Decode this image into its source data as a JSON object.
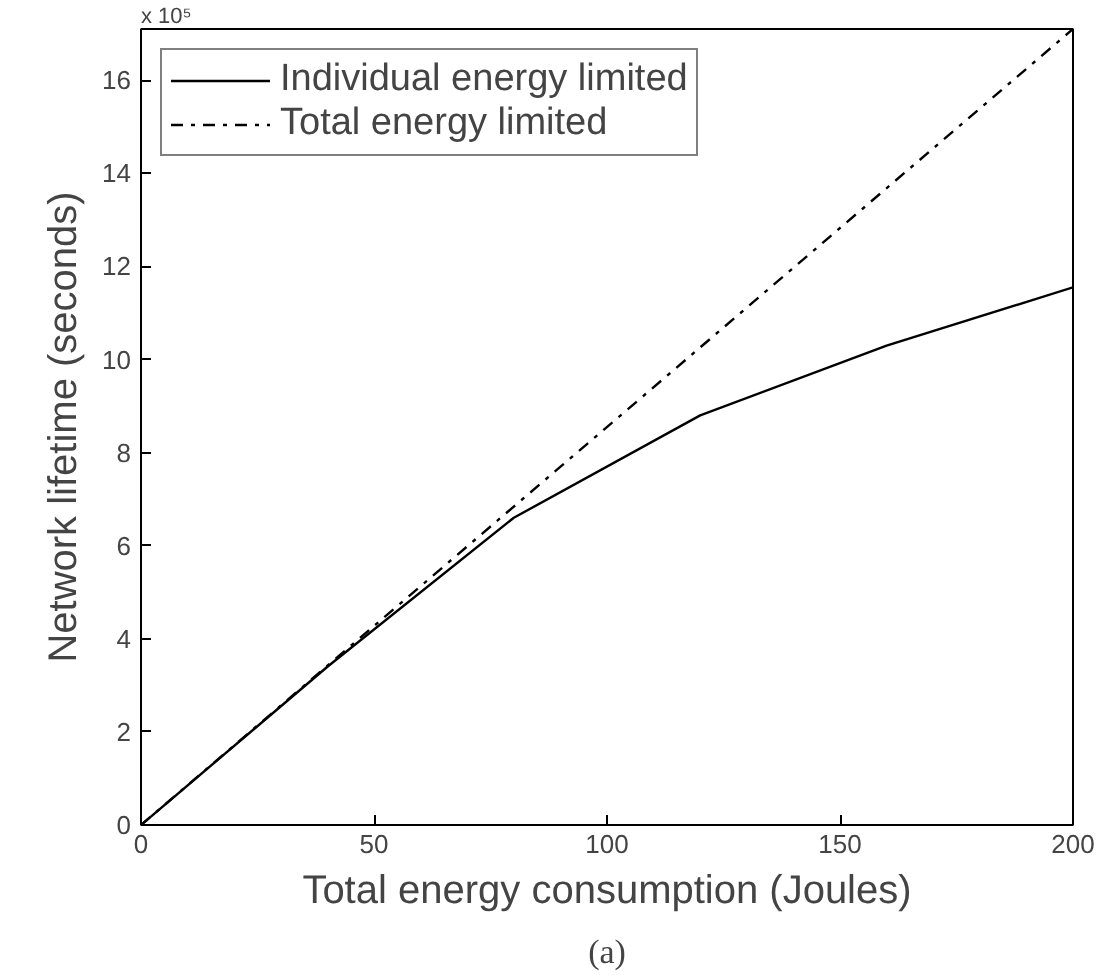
{
  "chart_data": {
    "type": "line",
    "xlabel": "Total energy consumption (Joules)",
    "ylabel": "Network lifetime (seconds)",
    "xlim": [
      0,
      200
    ],
    "xticks": [
      0,
      50,
      100,
      150,
      200
    ],
    "ylim": [
      0,
      17.1
    ],
    "yticks": [
      0,
      2,
      4,
      6,
      8,
      10,
      12,
      14,
      16
    ],
    "grid": false,
    "legend": "top left",
    "marker": "none",
    "series": [
      {
        "name": "Individual energy limited",
        "color": "#000000",
        "line_style": "solid",
        "x": [
          0,
          40,
          80,
          120,
          160,
          200
        ],
        "values": [
          0,
          3.4,
          6.6,
          8.8,
          10.3,
          11.55
        ]
      },
      {
        "name": "Total energy limited",
        "color": "#000000",
        "line_style": "dashdot",
        "x": [
          0,
          200
        ],
        "values": [
          0,
          17.1
        ]
      }
    ],
    "annotations": [
      "x 10⁵",
      "(a)"
    ]
  }
}
